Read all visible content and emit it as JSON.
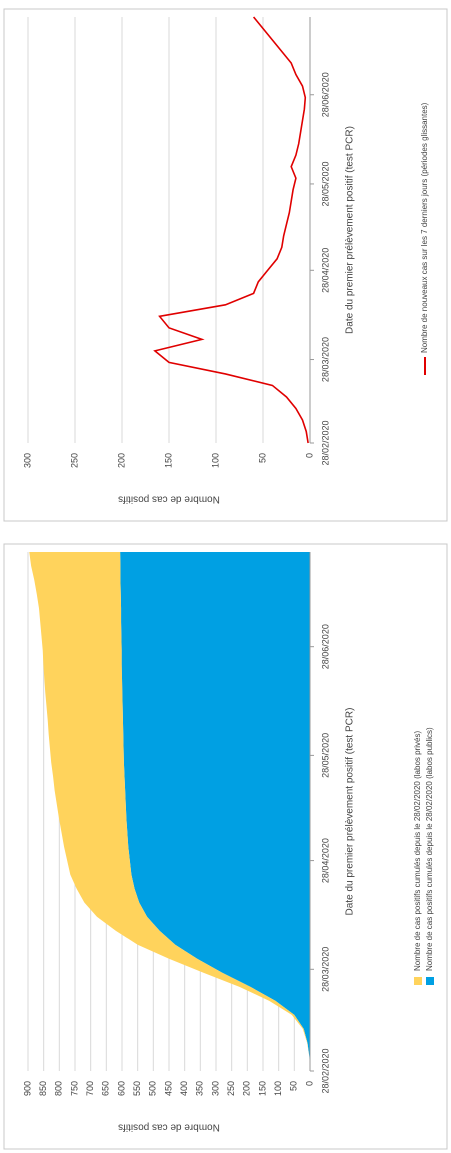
{
  "chart_data": [
    {
      "type": "area",
      "x": [
        "28/02/2020",
        "03/03/2020",
        "07/03/2020",
        "11/03/2020",
        "15/03/2020",
        "19/03/2020",
        "23/03/2020",
        "27/03/2020",
        "31/03/2020",
        "04/04/2020",
        "08/04/2020",
        "12/04/2020",
        "16/04/2020",
        "20/04/2020",
        "24/04/2020",
        "28/04/2020",
        "02/05/2020",
        "06/05/2020",
        "10/05/2020",
        "14/05/2020",
        "18/05/2020",
        "22/05/2020",
        "26/05/2020",
        "30/05/2020",
        "03/06/2020",
        "07/06/2020",
        "11/06/2020",
        "15/06/2020",
        "19/06/2020",
        "23/06/2020",
        "27/06/2020",
        "01/07/2020",
        "05/07/2020",
        "09/07/2020",
        "13/07/2020",
        "17/07/2020",
        "21/07/2020",
        "25/07/2020"
      ],
      "xlim": [
        "28/02/2020",
        "25/07/2020"
      ],
      "xticks": [
        "28/02/2020",
        "28/03/2020",
        "28/04/2020",
        "28/05/2020",
        "28/06/2020"
      ],
      "ylim": [
        0,
        900
      ],
      "yticks": [
        0,
        50,
        100,
        150,
        200,
        250,
        300,
        350,
        400,
        450,
        500,
        550,
        600,
        650,
        700,
        750,
        800,
        850,
        900
      ],
      "xlabel": "Date du premier prélèvement positif (test PCR)",
      "ylabel": "Nombre de cas positifs",
      "grid": true,
      "legend": "bottom",
      "series": [
        {
          "name": "Nombre de cas positifs cumulés depuis le 28/02/2020 (labos publics)",
          "color": "#00a0e3",
          "values": [
            0,
            2,
            8,
            20,
            50,
            110,
            190,
            280,
            360,
            430,
            480,
            520,
            545,
            560,
            570,
            575,
            580,
            583,
            586,
            588,
            590,
            592,
            594,
            595,
            596,
            597,
            598,
            599,
            600,
            601,
            601,
            602,
            603,
            603,
            604,
            605,
            605,
            606
          ]
        },
        {
          "name": "Nombre de cas positifs cumulés depuis le 28/02/2020 (labos privés)",
          "color": "#ffd35c",
          "values": [
            0,
            0,
            1,
            3,
            8,
            20,
            35,
            60,
            90,
            120,
            140,
            160,
            175,
            185,
            195,
            200,
            205,
            210,
            215,
            220,
            225,
            228,
            232,
            235,
            238,
            240,
            243,
            246,
            248,
            250,
            252,
            255,
            258,
            262,
            268,
            275,
            285,
            290
          ]
        }
      ]
    },
    {
      "type": "line",
      "x": [
        "28/02/2020",
        "03/03/2020",
        "07/03/2020",
        "11/03/2020",
        "15/03/2020",
        "19/03/2020",
        "23/03/2020",
        "27/03/2020",
        "31/03/2020",
        "04/04/2020",
        "08/04/2020",
        "12/04/2020",
        "16/04/2020",
        "20/04/2020",
        "24/04/2020",
        "28/04/2020",
        "02/05/2020",
        "06/05/2020",
        "10/05/2020",
        "14/05/2020",
        "18/05/2020",
        "22/05/2020",
        "26/05/2020",
        "30/05/2020",
        "03/06/2020",
        "07/06/2020",
        "11/06/2020",
        "15/06/2020",
        "19/06/2020",
        "23/06/2020",
        "27/06/2020",
        "01/07/2020",
        "05/07/2020",
        "09/07/2020",
        "13/07/2020",
        "17/07/2020",
        "21/07/2020",
        "25/07/2020"
      ],
      "xlim": [
        "28/02/2020",
        "25/07/2020"
      ],
      "xticks": [
        "28/02/2020",
        "28/03/2020",
        "28/04/2020",
        "28/05/2020",
        "28/06/2020"
      ],
      "ylim": [
        0,
        300
      ],
      "yticks": [
        0,
        50,
        100,
        150,
        200,
        250,
        300
      ],
      "xlabel": "Date du premier prélèvement positif (test PCR)",
      "ylabel": "Nombre de cas positifs",
      "grid": true,
      "legend": "bottom",
      "series": [
        {
          "name": "Nombre de nouveaux cas sur les 7 derniers jours (périodes glissantes)",
          "color": "#e00000",
          "values": [
            2,
            4,
            8,
            15,
            25,
            40,
            90,
            150,
            165,
            115,
            150,
            160,
            90,
            60,
            55,
            45,
            35,
            30,
            28,
            25,
            22,
            20,
            18,
            15,
            20,
            15,
            12,
            10,
            8,
            6,
            5,
            8,
            15,
            20,
            30,
            40,
            50,
            60
          ]
        }
      ]
    }
  ]
}
